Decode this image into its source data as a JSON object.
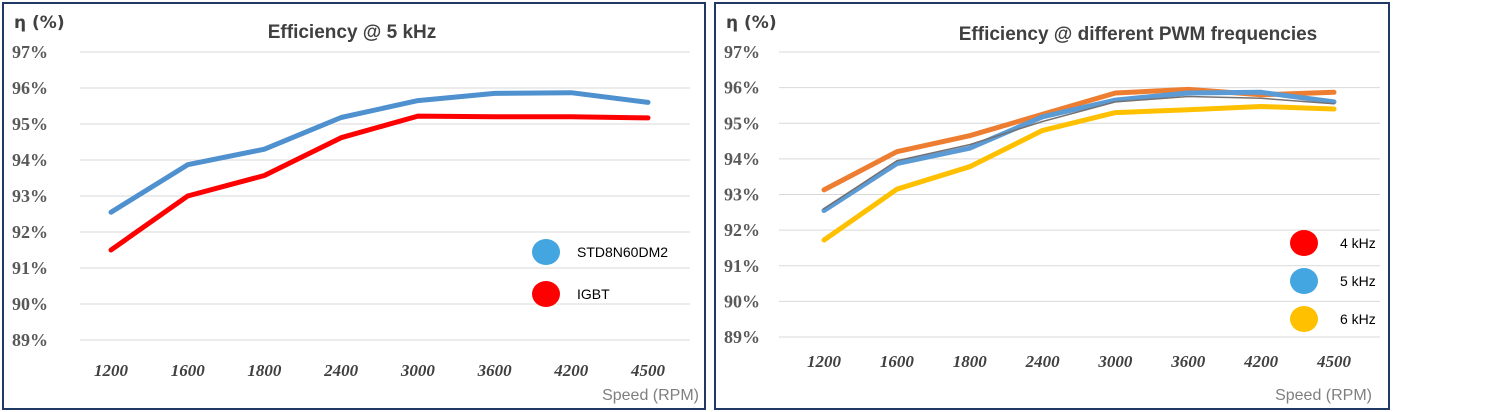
{
  "chart_data": [
    {
      "type": "line",
      "title": "Efficiency @ 5 kHz",
      "ylabel": "η (%)",
      "xlabel": "Speed (RPM)",
      "categories": [
        "1200",
        "1600",
        "1800",
        "2400",
        "3000",
        "3600",
        "4200",
        "4500"
      ],
      "yticks": [
        "97%",
        "96%",
        "95%",
        "94%",
        "93%",
        "92%",
        "91%",
        "90%",
        "89%"
      ],
      "ylim": [
        89,
        97
      ],
      "grid": true,
      "legend_position": "bottom-right",
      "series": [
        {
          "name": "STD8N60DM2",
          "color": "#4f90cf",
          "legend_color": "#43a6e0",
          "values": [
            92.55,
            93.87,
            94.3,
            95.18,
            95.65,
            95.85,
            95.87,
            95.6
          ]
        },
        {
          "name": "IGBT",
          "color": "#ff0000",
          "legend_color": "#ff0000",
          "values": [
            91.5,
            93.0,
            93.57,
            94.62,
            95.22,
            95.2,
            95.2,
            95.17
          ]
        }
      ]
    },
    {
      "type": "line",
      "title": "Efficiency @ different PWM frequencies",
      "ylabel": "η (%)",
      "xlabel": "Speed (RPM)",
      "categories": [
        "1200",
        "1600",
        "1800",
        "2400",
        "3000",
        "3600",
        "4200",
        "4500"
      ],
      "yticks": [
        "97%",
        "96%",
        "95%",
        "94%",
        "93%",
        "92%",
        "91%",
        "90%",
        "89%"
      ],
      "ylim": [
        89,
        97
      ],
      "grid": true,
      "legend_position": "bottom-right",
      "series": [
        {
          "name": "4 kHz",
          "color": "#ed7d31",
          "legend_color": "#ff0000",
          "values": [
            93.13,
            94.2,
            94.65,
            95.25,
            95.85,
            95.95,
            95.8,
            95.87
          ]
        },
        {
          "name": "5 kHz",
          "color": "#5b9bd5",
          "legend_color": "#43a6e0",
          "values": [
            92.55,
            93.87,
            94.3,
            95.18,
            95.65,
            95.85,
            95.87,
            95.6
          ]
        },
        {
          "name": "6 kHz",
          "color": "#ffc000",
          "legend_color": "#ffc000",
          "values": [
            91.72,
            93.15,
            93.78,
            94.8,
            95.3,
            95.38,
            95.47,
            95.4
          ]
        }
      ],
      "extra_line": {
        "color": "#767171",
        "values": [
          92.6,
          93.95,
          94.4,
          95.05,
          95.6,
          95.75,
          95.7,
          95.55
        ]
      }
    }
  ]
}
